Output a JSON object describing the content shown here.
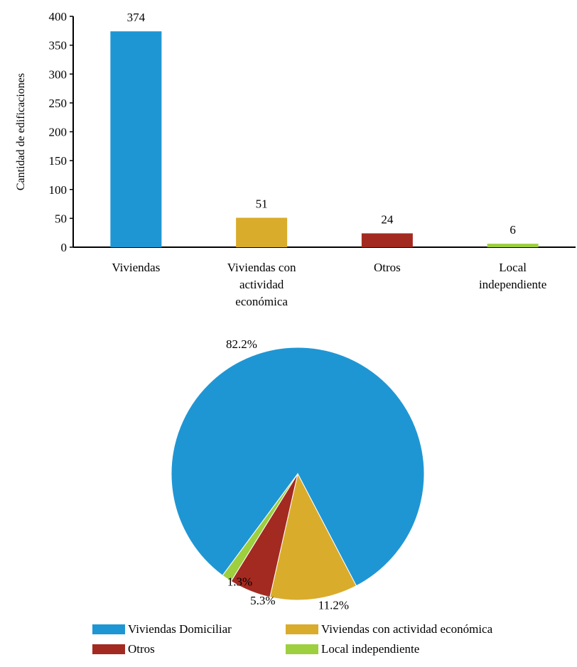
{
  "colors": {
    "blue": "#1f96d4",
    "gold": "#d9ac2b",
    "red": "#a32a20",
    "green": "#9dcf3f"
  },
  "chart_data": [
    {
      "type": "bar",
      "ylabel": "Cantidad de edificaciones",
      "xlabel": "",
      "ylim": [
        0,
        400
      ],
      "yticks": [
        0,
        50,
        100,
        150,
        200,
        250,
        300,
        350,
        400
      ],
      "grid": false,
      "categories": [
        [
          "Viviendas"
        ],
        [
          "Viviendas con",
          "actividad",
          "económica"
        ],
        [
          "Otros"
        ],
        [
          "Local",
          "independiente"
        ]
      ],
      "values": [
        374,
        51,
        24,
        6
      ],
      "data_labels": [
        "374",
        "51",
        "24",
        "6"
      ],
      "colors": [
        "#1f96d4",
        "#d9ac2b",
        "#a32a20",
        "#9dcf3f"
      ]
    },
    {
      "type": "pie",
      "values": [
        82.2,
        11.2,
        5.3,
        1.3
      ],
      "data_labels": [
        "82.2%",
        "11.2%",
        "5.3%",
        "1.3%"
      ],
      "colors": [
        "#1f96d4",
        "#d9ac2b",
        "#a32a20",
        "#9dcf3f"
      ],
      "legend": [
        "Viviendas Domiciliar",
        "Viviendas con actividad económica",
        "Otros",
        "Local independiente"
      ],
      "legend_position": "bottom"
    }
  ]
}
